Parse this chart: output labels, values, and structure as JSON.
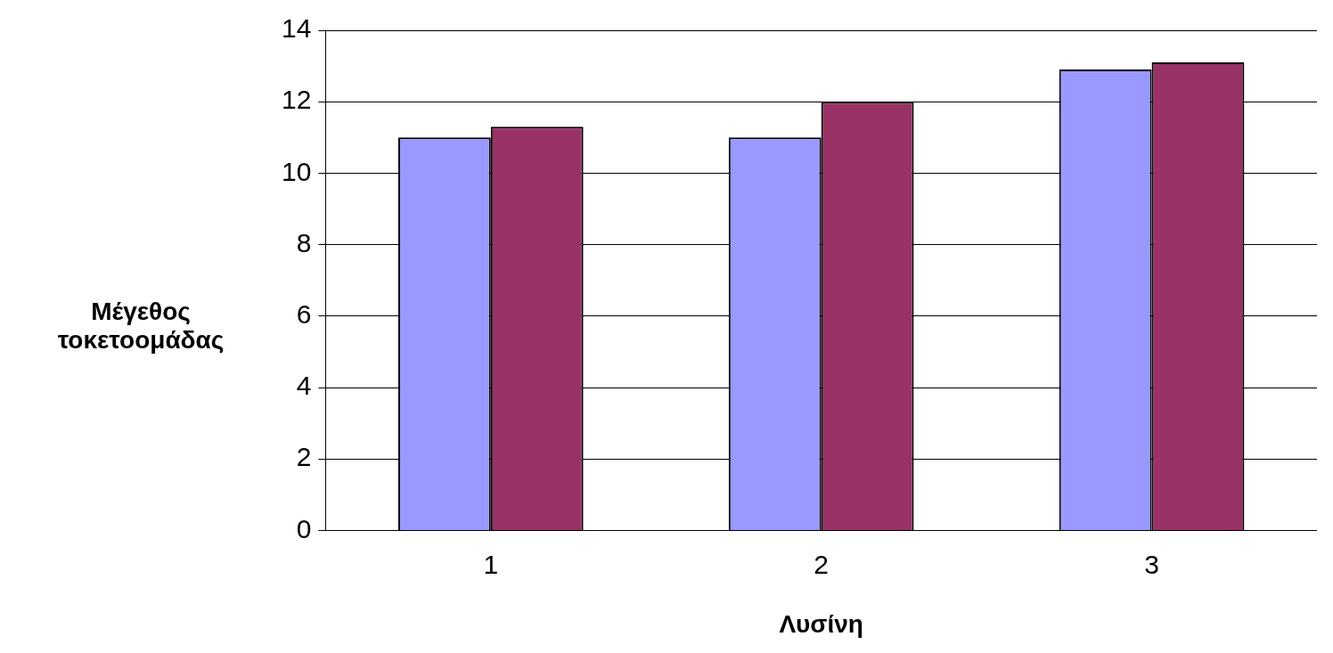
{
  "chart_data": {
    "type": "bar",
    "xlabel": "Λυσίνη",
    "ylabel": "Μέγεθος τοκετοομάδας",
    "categories": [
      "1",
      "2",
      "3"
    ],
    "series": [
      {
        "color": "#9999ff",
        "values": [
          11,
          11,
          12.9
        ]
      },
      {
        "color": "#993366",
        "values": [
          11.3,
          12,
          13.1
        ]
      }
    ],
    "ylim": [
      0,
      14
    ],
    "yticks": [
      0,
      2,
      4,
      6,
      8,
      10,
      12,
      14
    ],
    "grid": "y",
    "legend": false
  }
}
